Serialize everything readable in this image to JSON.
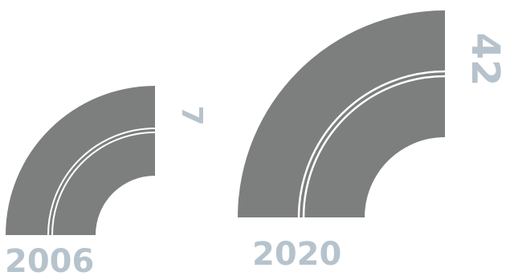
{
  "colors": {
    "road": "#7d7f7f",
    "lane_line": "#ffffff",
    "label": "#b6c3cc",
    "background": "#ffffff"
  },
  "items": [
    {
      "year": "2006",
      "value": "7"
    },
    {
      "year": "2020",
      "value": "42"
    }
  ]
}
